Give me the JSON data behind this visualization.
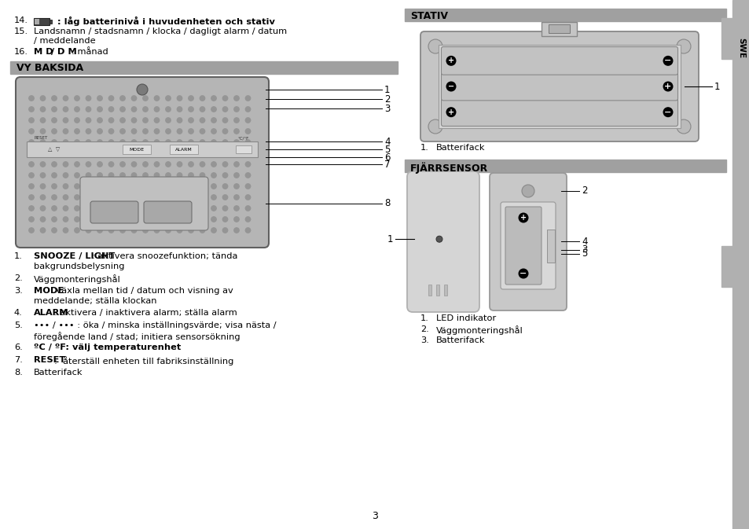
{
  "bg_color": "#ffffff",
  "page_num": "3",
  "sidebar_color": "#b0b0b0",
  "sidebar_text": "SWE",
  "header_bar_color": "#a0a0a0",
  "left_col": {
    "section_title": "VY BAKSIDA",
    "numbered_items": [
      {
        "num": "1.",
        "text_bold": "SNOOZE / LIGHT",
        "text_normal": ": aktivera snoozefunktion; tända",
        "line2": "bakgrundsbelysning"
      },
      {
        "num": "2.",
        "text_bold": "",
        "text_normal": "Väggmonteringshål",
        "line2": ""
      },
      {
        "num": "3.",
        "text_bold": "MODE",
        "text_normal": ": växla mellan tid / datum och visning av",
        "line2": "meddelande; ställa klockan"
      },
      {
        "num": "4.",
        "text_bold": "ALARM",
        "text_normal": ": aktivera / inaktivera alarm; ställa alarm",
        "line2": ""
      },
      {
        "num": "5.",
        "text_bold": "",
        "text_normal": "••• / ••• : öka / minska inställningsvärde; visa nästa /",
        "line2": "föregående land / stad; initiera sensorsökning"
      },
      {
        "num": "6.",
        "text_bold": "ºC / ºF",
        "text_normal": ": välj temperaturenhet",
        "line2": "",
        "whole_bold": true
      },
      {
        "num": "7.",
        "text_bold": "RESET",
        "text_normal": ":  återställ enheten till fabriksinställning",
        "line2": ""
      },
      {
        "num": "8.",
        "text_bold": "",
        "text_normal": "Batterifack",
        "line2": ""
      }
    ]
  },
  "right_col": {
    "stativ_title": "STATIV",
    "stativ_caption_num": "1.",
    "stativ_caption_text": "Batterifack",
    "fjarr_title": "FJÄRRSENSOR",
    "fjarr_captions": [
      [
        "1.",
        "LED indikator"
      ],
      [
        "2.",
        "Väggmonteringshål"
      ],
      [
        "3.",
        "Batterifack"
      ]
    ]
  }
}
